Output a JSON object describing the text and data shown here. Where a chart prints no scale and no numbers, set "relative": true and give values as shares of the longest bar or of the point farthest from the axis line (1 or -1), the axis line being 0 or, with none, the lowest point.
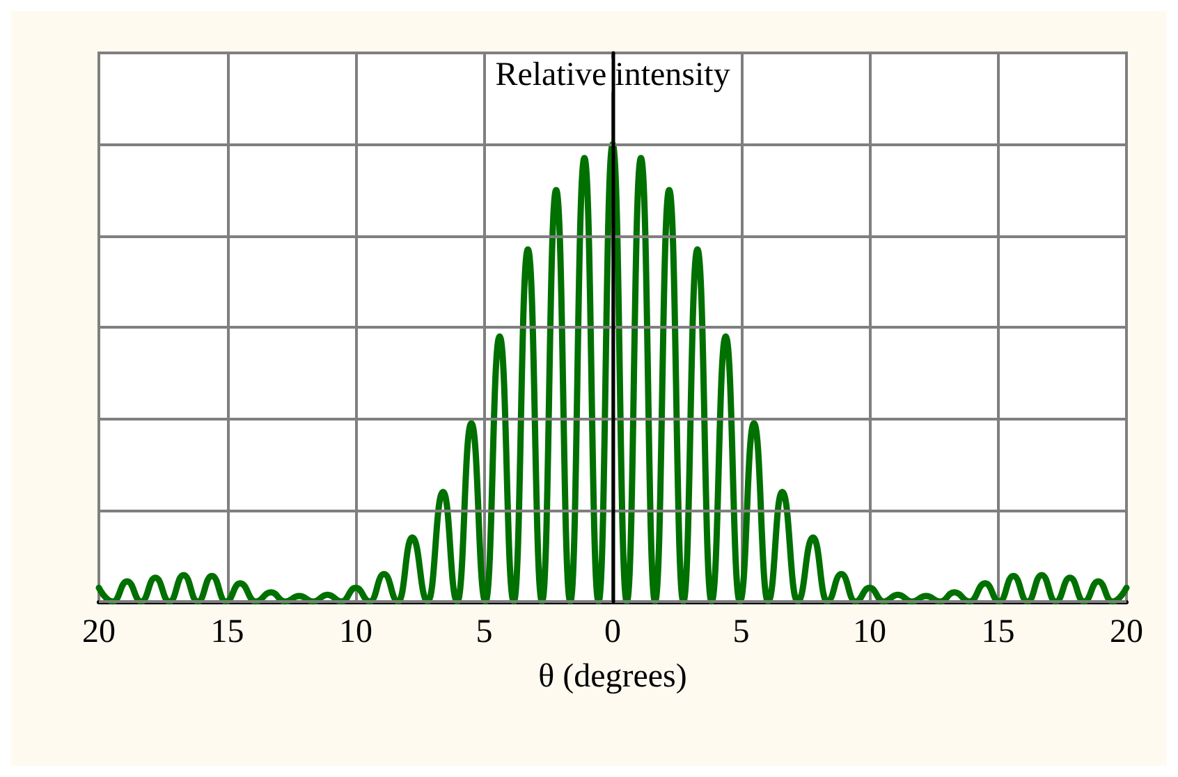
{
  "chart_data": {
    "type": "line",
    "relative": true,
    "xlabel": "θ (degrees)",
    "ylabel": "Relative intensity",
    "xlim": [
      -20,
      20
    ],
    "xticks": [
      {
        "value": -20,
        "label": "20"
      },
      {
        "value": -15,
        "label": "15"
      },
      {
        "value": -10,
        "label": "10"
      },
      {
        "value": -5,
        "label": "5"
      },
      0,
      5,
      10,
      15,
      20
    ],
    "grid": true,
    "marker": "none",
    "line_style": "solid",
    "series": [
      {
        "color": "#007000",
        "x": [
          -20,
          -19.45,
          -18.9,
          -18.35,
          -17.8,
          -17.25,
          -16.7,
          -16.15,
          -15.6,
          -15.05,
          -14.5,
          -13.9,
          -13.3,
          -12.75,
          -12.2,
          -11.65,
          -11.1,
          -10.55,
          -10,
          -9.45,
          -8.9,
          -8.35,
          -7.8,
          -7.2,
          -6.6,
          -6.05,
          -5.5,
          -4.95,
          -4.4,
          -3.85,
          -3.3,
          -2.75,
          -2.2,
          -1.65,
          -1.1,
          -0.55,
          0,
          0.55,
          1.1,
          1.65,
          2.2,
          2.75,
          3.3,
          3.85,
          4.4,
          4.95,
          5.5,
          6.05,
          6.6,
          7.2,
          7.8,
          8.35,
          8.9,
          9.45,
          10,
          10.55,
          11.1,
          11.65,
          12.2,
          12.75,
          13.3,
          13.9,
          14.5,
          15.05,
          15.6,
          16.15,
          16.7,
          17.25,
          17.8,
          18.35,
          18.9,
          19.45,
          20
        ],
        "values": [
          0.03,
          0,
          0.044,
          0,
          0.052,
          0,
          0.058,
          0,
          0.056,
          0,
          0.04,
          0,
          0.02,
          0,
          0.012,
          0,
          0.015,
          0,
          0.03,
          0,
          0.06,
          0,
          0.14,
          0,
          0.24,
          0,
          0.39,
          0,
          0.58,
          0,
          0.77,
          0,
          0.9,
          0,
          0.97,
          0,
          1,
          0,
          0.97,
          0,
          0.9,
          0,
          0.77,
          0,
          0.58,
          0,
          0.39,
          0,
          0.24,
          0,
          0.14,
          0,
          0.06,
          0,
          0.03,
          0,
          0.015,
          0,
          0.012,
          0,
          0.02,
          0,
          0.04,
          0,
          0.056,
          0,
          0.058,
          0,
          0.052,
          0,
          0.044,
          0,
          0.03
        ]
      }
    ]
  }
}
